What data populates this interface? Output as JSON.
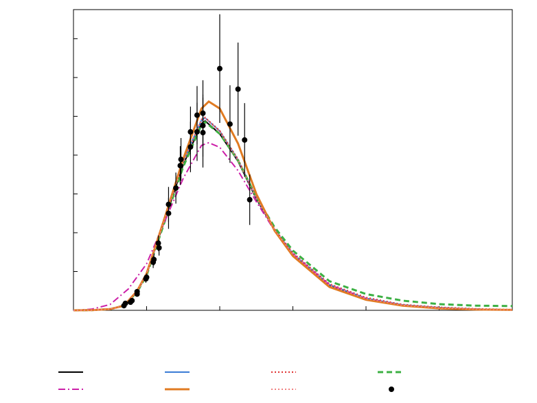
{
  "chart_data": {
    "type": "line",
    "xlim": [
      0,
      6
    ],
    "xticks": [
      1,
      2,
      3,
      4,
      5
    ],
    "ylim": [
      0,
      7.75
    ],
    "yticks": [
      1,
      2,
      3,
      4,
      5,
      6,
      7
    ],
    "series": [
      {
        "color": "#000000",
        "dash": "solid",
        "width": 2,
        "x": [
          0,
          0.25,
          0.5,
          0.69,
          0.87,
          1.0,
          1.25,
          1.5,
          1.75,
          1.8,
          2.0,
          2.25,
          2.5,
          2.75,
          3.0,
          3.5,
          4.0,
          4.5,
          5.0,
          5.5,
          6.0
        ],
        "values": [
          0,
          0.005,
          0.03,
          0.12,
          0.48,
          0.92,
          2.34,
          3.75,
          4.81,
          4.88,
          4.55,
          3.84,
          2.87,
          2.07,
          1.45,
          0.65,
          0.3,
          0.13,
          0.06,
          0.03,
          0.01
        ]
      },
      {
        "color": "#3a7bd5",
        "dash": "solid",
        "width": 2,
        "x": [
          0,
          0.25,
          0.5,
          0.69,
          0.87,
          1.0,
          1.25,
          1.5,
          1.75,
          1.8,
          2.0,
          2.25,
          2.5,
          2.75,
          3.0,
          3.5,
          4.0,
          4.5,
          5.0,
          5.5,
          6.0
        ],
        "values": [
          0,
          0.005,
          0.03,
          0.13,
          0.5,
          0.95,
          2.4,
          3.85,
          4.9,
          4.96,
          4.62,
          3.88,
          2.9,
          2.08,
          1.46,
          0.66,
          0.31,
          0.14,
          0.07,
          0.03,
          0.01
        ]
      },
      {
        "color": "#e03030",
        "dash": "dot",
        "width": 2,
        "x": [
          0,
          0.25,
          0.5,
          0.69,
          0.87,
          1.0,
          1.25,
          1.5,
          1.75,
          1.8,
          2.0,
          2.25,
          2.5,
          2.75,
          3.0,
          3.5,
          4.0,
          4.5,
          5.0,
          5.5,
          6.0
        ],
        "values": [
          0,
          0.005,
          0.03,
          0.12,
          0.49,
          0.94,
          2.38,
          3.82,
          4.92,
          4.97,
          4.63,
          3.9,
          2.92,
          2.1,
          1.48,
          0.68,
          0.33,
          0.15,
          0.08,
          0.04,
          0.02
        ]
      },
      {
        "color": "#3cb043",
        "dash": "dash",
        "width": 3,
        "x": [
          0,
          0.25,
          0.5,
          0.69,
          0.87,
          1.0,
          1.25,
          1.5,
          1.75,
          1.8,
          2.0,
          2.25,
          2.5,
          2.75,
          3.0,
          3.5,
          4.0,
          4.5,
          5.0,
          5.5,
          6.0
        ],
        "values": [
          0,
          0.005,
          0.03,
          0.12,
          0.47,
          0.9,
          2.3,
          3.7,
          4.78,
          4.85,
          4.55,
          3.86,
          2.92,
          2.14,
          1.54,
          0.75,
          0.42,
          0.25,
          0.16,
          0.12,
          0.11
        ]
      },
      {
        "color": "#cc1fa8",
        "dash": "dashdot",
        "width": 2,
        "x": [
          0,
          0.25,
          0.5,
          0.75,
          1.0,
          1.25,
          1.5,
          1.75,
          1.85,
          2.0,
          2.25,
          2.5,
          2.75,
          3.0,
          3.5,
          4.0,
          4.5,
          5.0,
          5.5,
          6.0
        ],
        "values": [
          0,
          0.03,
          0.15,
          0.55,
          1.2,
          2.3,
          3.4,
          4.25,
          4.32,
          4.2,
          3.6,
          2.8,
          2.05,
          1.45,
          0.66,
          0.3,
          0.13,
          0.06,
          0.03,
          0.01
        ]
      },
      {
        "color": "#e07b22",
        "dash": "solid",
        "width": 3,
        "x": [
          0,
          0.25,
          0.5,
          0.69,
          0.87,
          1.0,
          1.25,
          1.5,
          1.75,
          1.85,
          2.0,
          2.25,
          2.5,
          2.75,
          3.0,
          3.5,
          4.0,
          4.5,
          5.0,
          5.5,
          6.0
        ],
        "values": [
          0,
          0.005,
          0.03,
          0.12,
          0.5,
          0.95,
          2.4,
          3.9,
          5.2,
          5.38,
          5.2,
          4.3,
          3.0,
          2.05,
          1.4,
          0.6,
          0.27,
          0.12,
          0.05,
          0.02,
          0.01
        ]
      },
      {
        "color": "#f08080",
        "dash": "dot",
        "width": 2,
        "x": [
          0,
          0.25,
          0.5,
          0.69,
          0.87,
          1.0,
          1.25,
          1.5,
          1.75,
          1.8,
          2.0,
          2.25,
          2.5,
          2.75,
          3.0,
          3.5,
          4.0,
          4.5,
          5.0,
          5.5,
          6.0
        ],
        "values": [
          0,
          0.005,
          0.03,
          0.12,
          0.48,
          0.93,
          2.36,
          3.8,
          4.9,
          4.95,
          4.6,
          3.86,
          2.88,
          2.07,
          1.45,
          0.65,
          0.3,
          0.13,
          0.06,
          0.03,
          0.01
        ]
      },
      {
        "type": "scatter",
        "color": "#000000",
        "x": [
          0.69,
          0.71,
          0.78,
          0.8,
          0.87,
          0.87,
          0.99,
          1.0,
          1.09,
          1.1,
          1.16,
          1.17,
          1.3,
          1.3,
          1.4,
          1.46,
          1.47,
          1.6,
          1.6,
          1.69,
          1.69,
          1.77,
          1.77,
          1.77,
          2.0,
          2.14,
          2.25,
          2.34,
          2.41
        ],
        "values": [
          0.12,
          0.18,
          0.21,
          0.25,
          0.42,
          0.48,
          0.81,
          0.85,
          1.24,
          1.31,
          1.73,
          1.61,
          2.5,
          2.73,
          3.15,
          3.73,
          3.89,
          4.21,
          4.6,
          5.03,
          4.6,
          4.76,
          5.08,
          4.58,
          6.23,
          4.8,
          5.7,
          4.39,
          2.85
        ],
        "errors": [
          0.05,
          0.05,
          0.05,
          0.05,
          0.07,
          0.07,
          0.1,
          0.1,
          0.15,
          0.15,
          0.2,
          0.2,
          0.4,
          0.45,
          0.4,
          0.5,
          0.55,
          0.65,
          0.65,
          0.75,
          0.75,
          0.8,
          0.85,
          0.9,
          1.4,
          1.0,
          1.2,
          0.95,
          0.65
        ]
      }
    ],
    "legend": [
      0,
      4,
      1,
      5,
      2,
      6,
      3,
      7
    ]
  }
}
